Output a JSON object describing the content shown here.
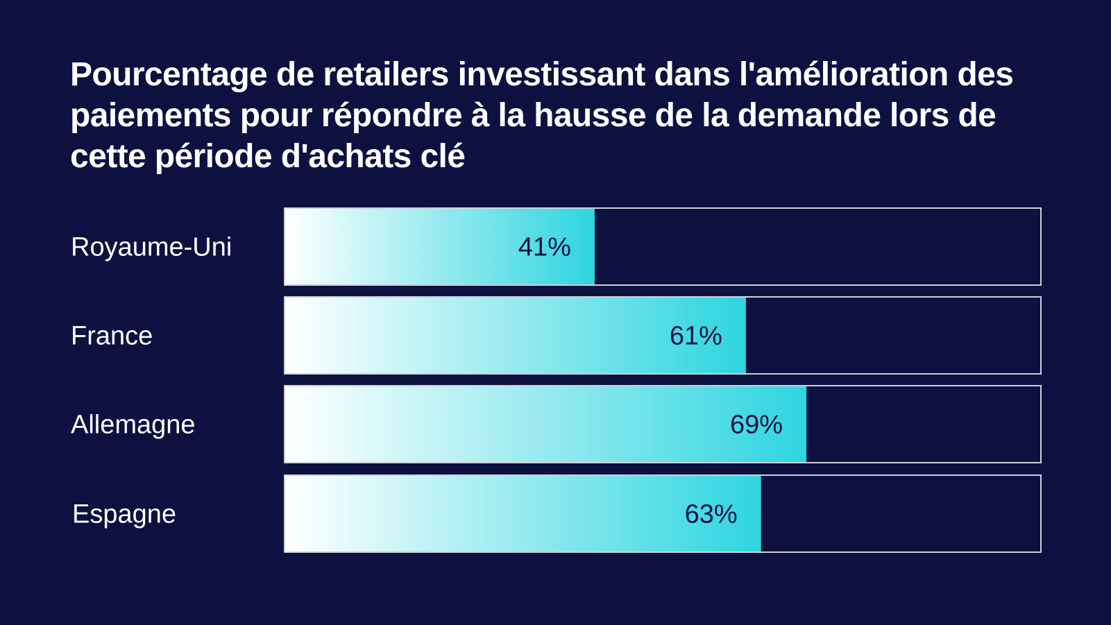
{
  "colors": {
    "background": "#0d1140",
    "bar_start": "#ffffff",
    "bar_end": "#2dd5e0",
    "bar_outline": "#ffffff",
    "text": "#ffffff",
    "value_label": "#0d1140"
  },
  "chart_data": {
    "type": "bar",
    "orientation": "horizontal",
    "title": "Pourcentage de retailers investissant dans l'amélioration des paiements pour répondre à la hausse de la demande lors de cette période d'achats clé",
    "categories": [
      "Royaume-Uni",
      "France",
      "Allemagne",
      "Espagne"
    ],
    "values": [
      41,
      61,
      69,
      63
    ],
    "value_labels": [
      "41%",
      "61%",
      "69%",
      "63%"
    ],
    "xlim": [
      0,
      100
    ],
    "unit": "%",
    "grid": false,
    "legend": "none"
  }
}
